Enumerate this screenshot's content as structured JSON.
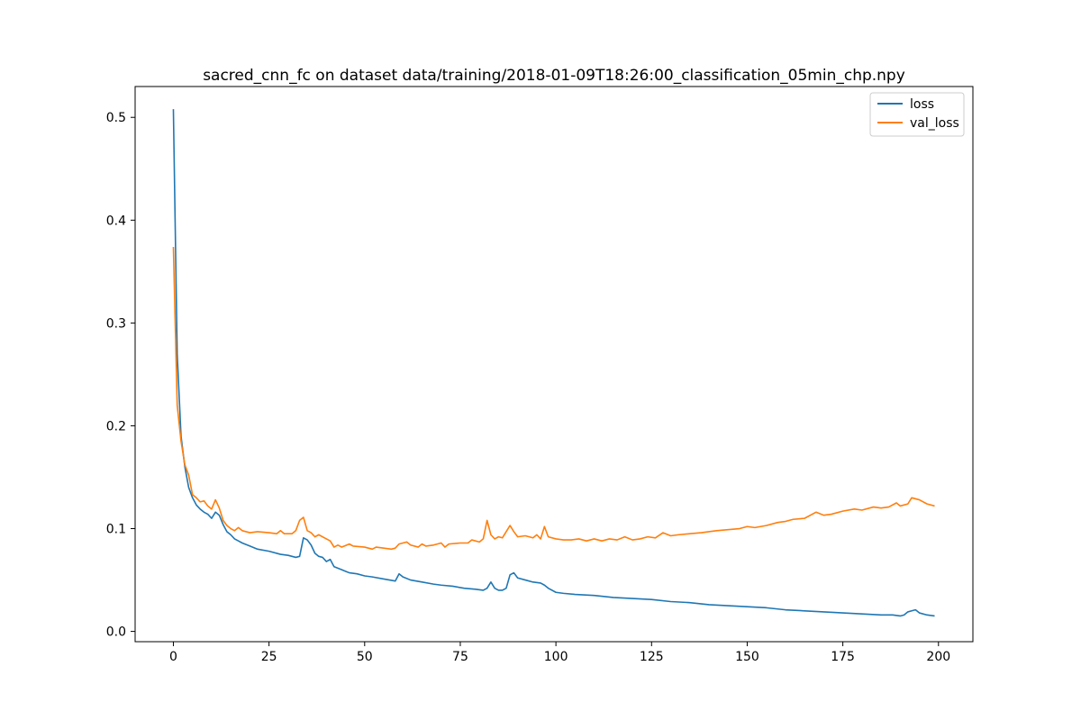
{
  "chart_data": {
    "type": "line",
    "title": "sacred_cnn_fc on dataset data/training/2018-01-09T18:26:00_classification_05min_chp.npy",
    "xlabel": "",
    "ylabel": "",
    "xlim": [
      -10,
      209
    ],
    "ylim": [
      -0.01,
      0.53
    ],
    "x_ticks": [
      0,
      25,
      50,
      75,
      100,
      125,
      150,
      175,
      200
    ],
    "y_ticks": [
      0.0,
      0.1,
      0.2,
      0.3,
      0.4,
      0.5
    ],
    "grid": false,
    "legend_position": "top-right",
    "series": [
      {
        "name": "loss",
        "color": "#1f77b4",
        "points": [
          [
            0,
            0.508
          ],
          [
            1,
            0.27
          ],
          [
            2,
            0.19
          ],
          [
            3,
            0.16
          ],
          [
            4,
            0.14
          ],
          [
            5,
            0.13
          ],
          [
            6,
            0.123
          ],
          [
            7,
            0.119
          ],
          [
            8,
            0.116
          ],
          [
            9,
            0.114
          ],
          [
            10,
            0.11
          ],
          [
            11,
            0.116
          ],
          [
            12,
            0.113
          ],
          [
            13,
            0.104
          ],
          [
            14,
            0.097
          ],
          [
            15,
            0.094
          ],
          [
            16,
            0.09
          ],
          [
            17,
            0.088
          ],
          [
            18,
            0.086
          ],
          [
            20,
            0.083
          ],
          [
            22,
            0.08
          ],
          [
            25,
            0.078
          ],
          [
            28,
            0.075
          ],
          [
            30,
            0.074
          ],
          [
            32,
            0.072
          ],
          [
            33,
            0.073
          ],
          [
            34,
            0.091
          ],
          [
            35,
            0.089
          ],
          [
            36,
            0.084
          ],
          [
            37,
            0.076
          ],
          [
            38,
            0.073
          ],
          [
            39,
            0.072
          ],
          [
            40,
            0.068
          ],
          [
            41,
            0.07
          ],
          [
            42,
            0.063
          ],
          [
            44,
            0.06
          ],
          [
            46,
            0.057
          ],
          [
            48,
            0.056
          ],
          [
            50,
            0.054
          ],
          [
            52,
            0.053
          ],
          [
            55,
            0.051
          ],
          [
            58,
            0.049
          ],
          [
            59,
            0.056
          ],
          [
            60,
            0.053
          ],
          [
            62,
            0.05
          ],
          [
            65,
            0.048
          ],
          [
            68,
            0.046
          ],
          [
            70,
            0.045
          ],
          [
            73,
            0.044
          ],
          [
            76,
            0.042
          ],
          [
            79,
            0.041
          ],
          [
            81,
            0.04
          ],
          [
            82,
            0.042
          ],
          [
            83,
            0.048
          ],
          [
            84,
            0.042
          ],
          [
            85,
            0.04
          ],
          [
            86,
            0.04
          ],
          [
            87,
            0.042
          ],
          [
            88,
            0.055
          ],
          [
            89,
            0.057
          ],
          [
            90,
            0.052
          ],
          [
            92,
            0.05
          ],
          [
            94,
            0.048
          ],
          [
            96,
            0.047
          ],
          [
            97,
            0.045
          ],
          [
            98,
            0.042
          ],
          [
            100,
            0.038
          ],
          [
            102,
            0.037
          ],
          [
            105,
            0.036
          ],
          [
            110,
            0.035
          ],
          [
            115,
            0.033
          ],
          [
            120,
            0.032
          ],
          [
            125,
            0.031
          ],
          [
            130,
            0.029
          ],
          [
            135,
            0.028
          ],
          [
            140,
            0.026
          ],
          [
            145,
            0.025
          ],
          [
            150,
            0.024
          ],
          [
            155,
            0.023
          ],
          [
            160,
            0.021
          ],
          [
            165,
            0.02
          ],
          [
            170,
            0.019
          ],
          [
            175,
            0.018
          ],
          [
            180,
            0.017
          ],
          [
            185,
            0.016
          ],
          [
            188,
            0.016
          ],
          [
            190,
            0.015
          ],
          [
            191,
            0.016
          ],
          [
            192,
            0.019
          ],
          [
            193,
            0.02
          ],
          [
            194,
            0.021
          ],
          [
            195,
            0.018
          ],
          [
            197,
            0.016
          ],
          [
            199,
            0.015
          ]
        ]
      },
      {
        "name": "val_loss",
        "color": "#ff7f0e",
        "points": [
          [
            0,
            0.374
          ],
          [
            1,
            0.22
          ],
          [
            2,
            0.185
          ],
          [
            3,
            0.162
          ],
          [
            4,
            0.152
          ],
          [
            5,
            0.133
          ],
          [
            6,
            0.13
          ],
          [
            7,
            0.126
          ],
          [
            8,
            0.127
          ],
          [
            9,
            0.122
          ],
          [
            10,
            0.119
          ],
          [
            11,
            0.128
          ],
          [
            12,
            0.12
          ],
          [
            13,
            0.108
          ],
          [
            14,
            0.103
          ],
          [
            15,
            0.1
          ],
          [
            16,
            0.098
          ],
          [
            17,
            0.101
          ],
          [
            18,
            0.098
          ],
          [
            20,
            0.096
          ],
          [
            22,
            0.097
          ],
          [
            25,
            0.096
          ],
          [
            27,
            0.095
          ],
          [
            28,
            0.098
          ],
          [
            29,
            0.095
          ],
          [
            31,
            0.095
          ],
          [
            32,
            0.098
          ],
          [
            33,
            0.108
          ],
          [
            34,
            0.111
          ],
          [
            35,
            0.098
          ],
          [
            36,
            0.096
          ],
          [
            37,
            0.092
          ],
          [
            38,
            0.094
          ],
          [
            40,
            0.09
          ],
          [
            41,
            0.088
          ],
          [
            42,
            0.082
          ],
          [
            43,
            0.084
          ],
          [
            44,
            0.082
          ],
          [
            46,
            0.085
          ],
          [
            47,
            0.083
          ],
          [
            50,
            0.082
          ],
          [
            52,
            0.08
          ],
          [
            53,
            0.082
          ],
          [
            55,
            0.081
          ],
          [
            57,
            0.08
          ],
          [
            58,
            0.081
          ],
          [
            59,
            0.085
          ],
          [
            61,
            0.087
          ],
          [
            62,
            0.084
          ],
          [
            64,
            0.082
          ],
          [
            65,
            0.085
          ],
          [
            66,
            0.083
          ],
          [
            68,
            0.084
          ],
          [
            70,
            0.086
          ],
          [
            71,
            0.082
          ],
          [
            72,
            0.085
          ],
          [
            75,
            0.086
          ],
          [
            77,
            0.086
          ],
          [
            78,
            0.089
          ],
          [
            80,
            0.087
          ],
          [
            81,
            0.09
          ],
          [
            82,
            0.108
          ],
          [
            83,
            0.094
          ],
          [
            84,
            0.09
          ],
          [
            85,
            0.092
          ],
          [
            86,
            0.091
          ],
          [
            87,
            0.097
          ],
          [
            88,
            0.103
          ],
          [
            89,
            0.097
          ],
          [
            90,
            0.092
          ],
          [
            92,
            0.093
          ],
          [
            94,
            0.091
          ],
          [
            95,
            0.094
          ],
          [
            96,
            0.09
          ],
          [
            97,
            0.102
          ],
          [
            98,
            0.092
          ],
          [
            100,
            0.09
          ],
          [
            102,
            0.089
          ],
          [
            104,
            0.089
          ],
          [
            106,
            0.09
          ],
          [
            108,
            0.088
          ],
          [
            110,
            0.09
          ],
          [
            112,
            0.088
          ],
          [
            114,
            0.09
          ],
          [
            116,
            0.089
          ],
          [
            118,
            0.092
          ],
          [
            120,
            0.089
          ],
          [
            122,
            0.09
          ],
          [
            124,
            0.092
          ],
          [
            126,
            0.091
          ],
          [
            128,
            0.096
          ],
          [
            130,
            0.093
          ],
          [
            132,
            0.094
          ],
          [
            135,
            0.095
          ],
          [
            138,
            0.096
          ],
          [
            140,
            0.097
          ],
          [
            142,
            0.098
          ],
          [
            145,
            0.099
          ],
          [
            148,
            0.1
          ],
          [
            150,
            0.102
          ],
          [
            152,
            0.101
          ],
          [
            155,
            0.103
          ],
          [
            158,
            0.106
          ],
          [
            160,
            0.107
          ],
          [
            162,
            0.109
          ],
          [
            165,
            0.11
          ],
          [
            168,
            0.116
          ],
          [
            170,
            0.113
          ],
          [
            172,
            0.114
          ],
          [
            175,
            0.117
          ],
          [
            178,
            0.119
          ],
          [
            180,
            0.118
          ],
          [
            183,
            0.121
          ],
          [
            185,
            0.12
          ],
          [
            187,
            0.121
          ],
          [
            189,
            0.125
          ],
          [
            190,
            0.122
          ],
          [
            192,
            0.124
          ],
          [
            193,
            0.13
          ],
          [
            195,
            0.128
          ],
          [
            197,
            0.124
          ],
          [
            199,
            0.122
          ]
        ]
      }
    ]
  }
}
